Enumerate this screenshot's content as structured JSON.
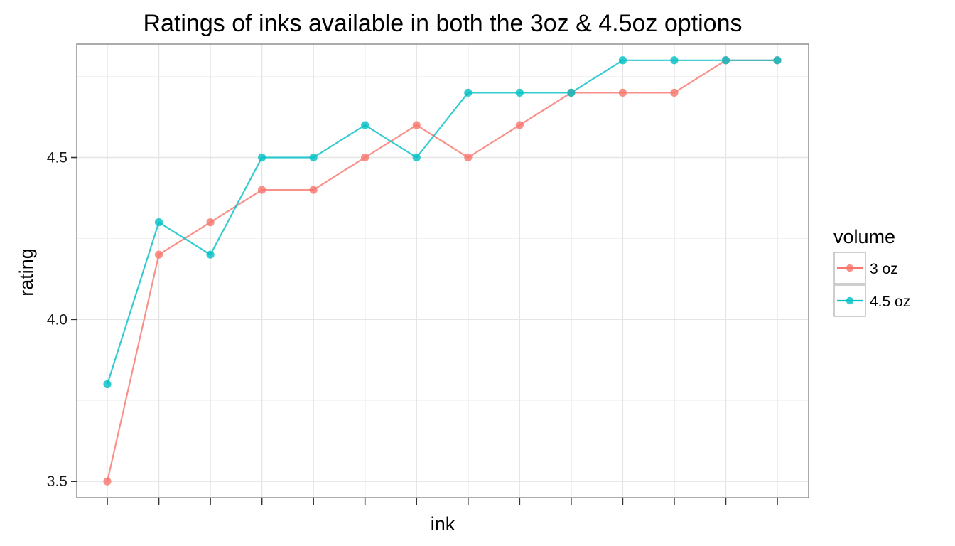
{
  "chart_data": {
    "type": "line",
    "title": "Ratings of inks available in both the 3oz & 4.5oz options",
    "xlabel": "ink",
    "ylabel": "rating",
    "x_count": 14,
    "x_tick_labels": [
      "",
      "",
      "",
      "",
      "",
      "",
      "",
      "",
      "",
      "",
      "",
      "",
      "",
      ""
    ],
    "ylim": [
      3.45,
      4.85
    ],
    "y_ticks": [
      3.5,
      4.0,
      4.5
    ],
    "y_tick_labels": [
      "3.5",
      "4.0",
      "4.5"
    ],
    "grid": true,
    "legend": {
      "title": "volume",
      "position": "right"
    },
    "series": [
      {
        "name": "3 oz",
        "color": "#F8766D",
        "values": [
          3.5,
          4.2,
          4.3,
          4.4,
          4.4,
          4.5,
          4.6,
          4.5,
          4.6,
          4.7,
          4.7,
          4.7,
          4.8,
          4.8
        ]
      },
      {
        "name": "4.5 oz",
        "color": "#00BFC4",
        "values": [
          3.8,
          4.3,
          4.2,
          4.5,
          4.5,
          4.6,
          4.5,
          4.7,
          4.7,
          4.7,
          4.8,
          4.8,
          4.8,
          4.8
        ]
      }
    ]
  }
}
